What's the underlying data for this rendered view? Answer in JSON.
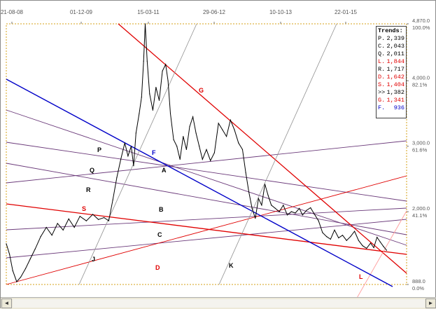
{
  "chart_data": {
    "type": "line",
    "title": "",
    "x_tick_labels": [
      "21-08-08",
      "01-12-09",
      "15-03-11",
      "29-06-12",
      "10-10-13",
      "22-01-15"
    ],
    "y_tick_labels": [
      {
        "value": 4870,
        "label": "4,870.0",
        "pct": "100.0%"
      },
      {
        "value": 4000,
        "label": "4,000.0",
        "pct": "82.1%"
      },
      {
        "value": 3000,
        "label": "3,000.0",
        "pct": "61.6%"
      },
      {
        "value": 2000,
        "label": "2,000.0",
        "pct": "41.1%"
      },
      {
        "value": 888,
        "label": "888.0",
        "pct": "0.0%"
      }
    ],
    "ylim": [
      888,
      4870
    ],
    "grid": false,
    "legend_position": "top-right",
    "series": [
      {
        "color": "#000000",
        "points": [
          [
            0.0,
            1510
          ],
          [
            0.008,
            1350
          ],
          [
            0.016,
            1100
          ],
          [
            0.026,
            930
          ],
          [
            0.036,
            1000
          ],
          [
            0.048,
            1130
          ],
          [
            0.06,
            1280
          ],
          [
            0.072,
            1430
          ],
          [
            0.086,
            1620
          ],
          [
            0.1,
            1760
          ],
          [
            0.114,
            1640
          ],
          [
            0.128,
            1820
          ],
          [
            0.142,
            1720
          ],
          [
            0.156,
            1890
          ],
          [
            0.17,
            1760
          ],
          [
            0.184,
            1930
          ],
          [
            0.2,
            1860
          ],
          [
            0.216,
            1960
          ],
          [
            0.23,
            1880
          ],
          [
            0.244,
            1910
          ],
          [
            0.256,
            1860
          ],
          [
            0.266,
            2180
          ],
          [
            0.276,
            2520
          ],
          [
            0.286,
            2800
          ],
          [
            0.296,
            3050
          ],
          [
            0.304,
            2850
          ],
          [
            0.312,
            3000
          ],
          [
            0.318,
            2700
          ],
          [
            0.324,
            3200
          ],
          [
            0.332,
            3500
          ],
          [
            0.338,
            3750
          ],
          [
            0.343,
            4300
          ],
          [
            0.347,
            4870
          ],
          [
            0.352,
            4300
          ],
          [
            0.358,
            3800
          ],
          [
            0.366,
            3550
          ],
          [
            0.374,
            3900
          ],
          [
            0.382,
            3700
          ],
          [
            0.39,
            4150
          ],
          [
            0.398,
            4250
          ],
          [
            0.404,
            4000
          ],
          [
            0.41,
            3500
          ],
          [
            0.418,
            3100
          ],
          [
            0.426,
            3000
          ],
          [
            0.434,
            2800
          ],
          [
            0.442,
            3150
          ],
          [
            0.45,
            2950
          ],
          [
            0.458,
            3300
          ],
          [
            0.466,
            3450
          ],
          [
            0.474,
            3200
          ],
          [
            0.482,
            3000
          ],
          [
            0.49,
            2800
          ],
          [
            0.5,
            2950
          ],
          [
            0.51,
            2780
          ],
          [
            0.52,
            2900
          ],
          [
            0.53,
            3350
          ],
          [
            0.54,
            3250
          ],
          [
            0.55,
            3150
          ],
          [
            0.56,
            3400
          ],
          [
            0.57,
            3250
          ],
          [
            0.58,
            3050
          ],
          [
            0.59,
            2950
          ],
          [
            0.598,
            2600
          ],
          [
            0.606,
            2300
          ],
          [
            0.614,
            2050
          ],
          [
            0.622,
            1900
          ],
          [
            0.63,
            2200
          ],
          [
            0.638,
            2100
          ],
          [
            0.646,
            2420
          ],
          [
            0.654,
            2250
          ],
          [
            0.662,
            2100
          ],
          [
            0.672,
            2050
          ],
          [
            0.682,
            2000
          ],
          [
            0.692,
            2100
          ],
          [
            0.702,
            1950
          ],
          [
            0.712,
            2000
          ],
          [
            0.722,
            1980
          ],
          [
            0.732,
            2050
          ],
          [
            0.74,
            1950
          ],
          [
            0.75,
            2020
          ],
          [
            0.76,
            2060
          ],
          [
            0.77,
            1960
          ],
          [
            0.78,
            1860
          ],
          [
            0.79,
            1680
          ],
          [
            0.8,
            1620
          ],
          [
            0.81,
            1580
          ],
          [
            0.82,
            1720
          ],
          [
            0.83,
            1600
          ],
          [
            0.84,
            1640
          ],
          [
            0.85,
            1560
          ],
          [
            0.86,
            1620
          ],
          [
            0.87,
            1700
          ],
          [
            0.88,
            1560
          ],
          [
            0.89,
            1480
          ],
          [
            0.9,
            1440
          ],
          [
            0.91,
            1520
          ],
          [
            0.918,
            1450
          ],
          [
            0.926,
            1610
          ],
          [
            0.934,
            1540
          ],
          [
            0.942,
            1470
          ],
          [
            0.95,
            1410
          ]
        ]
      }
    ],
    "trend_lines": [
      {
        "label": "P",
        "color": "#6b3a7a",
        "label_x": 0.245
      },
      {
        "label": "Q",
        "color": "#6b3a7a",
        "label_x": 0.215
      },
      {
        "label": "R",
        "color": "#6b3a7a",
        "label_x": 0.205
      },
      {
        "label": "A",
        "color": "#6b3a7a",
        "label_x": 0.405
      },
      {
        "label": "B",
        "color": "#6b3a7a",
        "label_x": 0.395
      },
      {
        "label": "C",
        "color": "#6b3a7a",
        "label_x": 0.393
      },
      {
        "label": "S",
        "color": "#e00000",
        "label_x": 0.205
      },
      {
        "label": "D",
        "color": "#e00000",
        "label_x": 0.39
      },
      {
        "label": "G",
        "color": "#e00000",
        "label_x": 0.498
      },
      {
        "label": "L",
        "color": "#ff9a9a",
        "label_x": 0.0
      },
      {
        "label": "F",
        "color": "#0000c8",
        "label_x": 0.0
      },
      {
        "label": "J",
        "color": "#909090",
        "label_x": 0.0
      },
      {
        "label": "K",
        "color": "#909090",
        "label_x": 0.0
      }
    ],
    "legend": {
      "title": "Trends:",
      "entries": [
        {
          "label": "P.",
          "value": "2,339",
          "color": "#000000"
        },
        {
          "label": "C.",
          "value": "2,043",
          "color": "#000000"
        },
        {
          "label": "Q.",
          "value": "2,011",
          "color": "#000000"
        },
        {
          "label": "L.",
          "value": "1,844",
          "color": "#e00000"
        },
        {
          "label": "R.",
          "value": "1,717",
          "color": "#000000"
        },
        {
          "label": "D.",
          "value": "1,642",
          "color": "#e00000"
        },
        {
          "label": "S.",
          "value": "1,404",
          "color": "#e00000"
        },
        {
          "label": ">>",
          "value": "1,382",
          "color": "#000000"
        },
        {
          "label": "G.",
          "value": "1,341",
          "color": "#e00000"
        },
        {
          "label": "F.",
          "value": "936",
          "color": "#0000c8"
        }
      ]
    }
  },
  "scrollbar": {
    "left_arrow": "◄",
    "right_arrow": "►"
  }
}
